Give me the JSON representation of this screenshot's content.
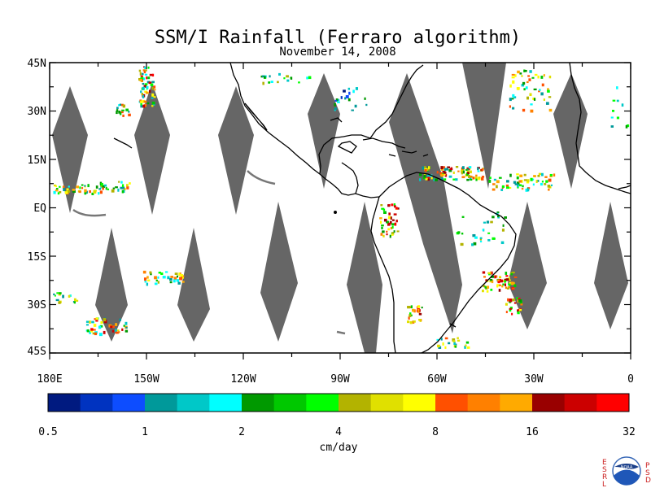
{
  "title": "SSM/I Rainfall (Ferraro algorithm)",
  "subtitle": "November 14, 2008",
  "map": {
    "lon_range": [
      180,
      360
    ],
    "lat_range": [
      -45,
      45
    ],
    "lat_ticks": [
      "45N",
      "30N",
      "15N",
      "EQ",
      "15S",
      "30S",
      "45S"
    ],
    "lon_ticks": [
      "180E",
      "150W",
      "120W",
      "90W",
      "60W",
      "30W",
      "0"
    ],
    "swath_gap_color": "#666666",
    "coastline_color": "#000000"
  },
  "colorbar": {
    "label": "cm/day",
    "tick_labels": [
      "0.5",
      "1",
      "2",
      "4",
      "8",
      "16",
      "32"
    ],
    "colors": [
      "#001a80",
      "#0033c0",
      "#0d4dff",
      "#00999a",
      "#00c8c8",
      "#00ffff",
      "#009900",
      "#00c800",
      "#00ff00",
      "#b3b300",
      "#e0e000",
      "#ffff00",
      "#ff5000",
      "#ff8000",
      "#ffaa00",
      "#990000",
      "#cc0000",
      "#ff0000"
    ]
  },
  "logo": {
    "left_letters": [
      "E",
      "S",
      "R",
      "L"
    ],
    "right_letters": [
      "P",
      "S",
      "D"
    ],
    "seal_text": "NOAA"
  }
}
